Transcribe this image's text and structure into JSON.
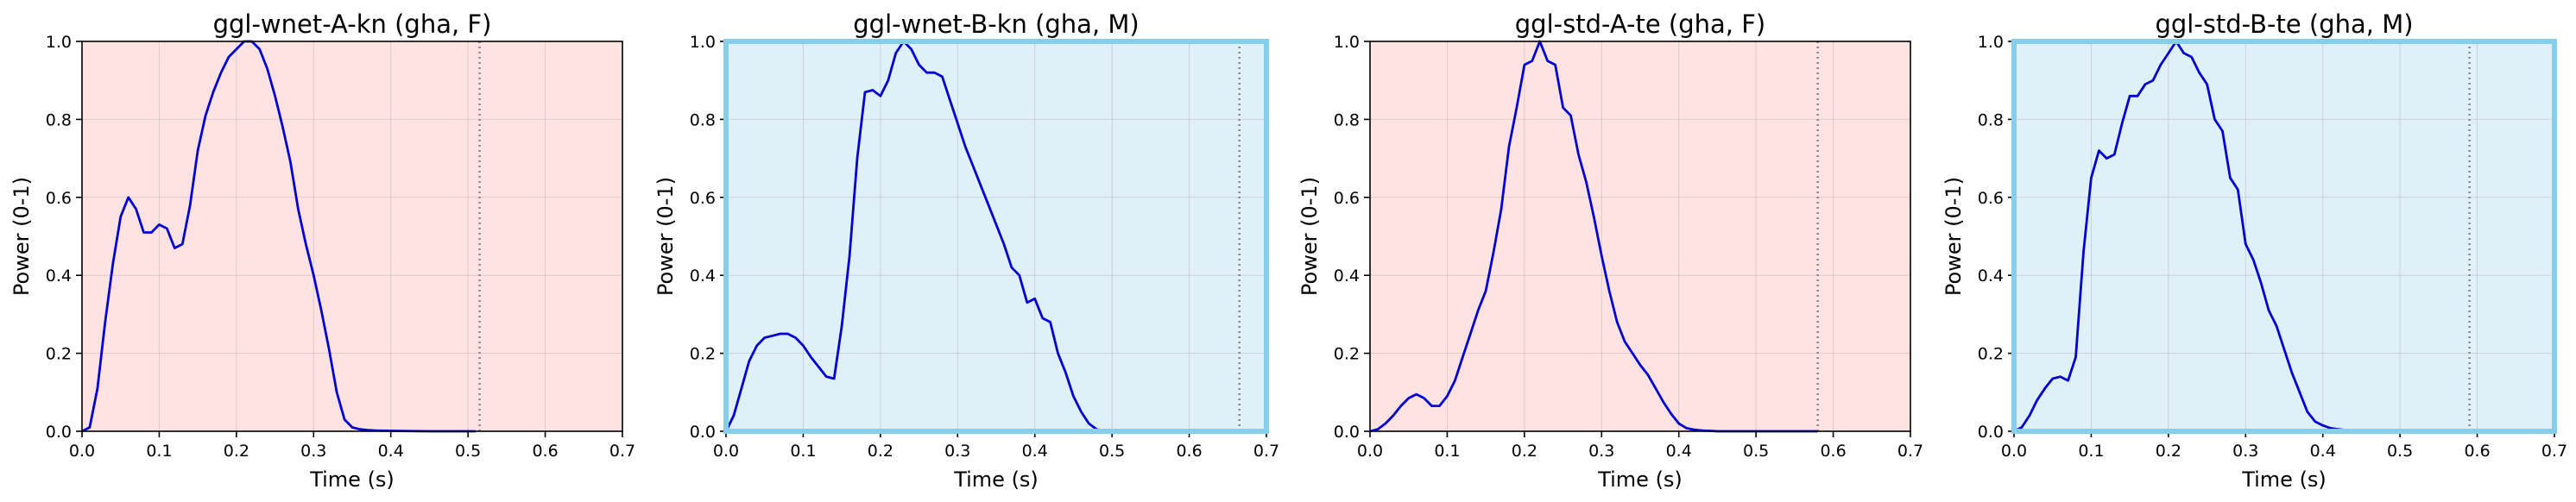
{
  "chart_data": [
    {
      "type": "line",
      "title": "ggl-wnet-A-kn (gha, F)",
      "xlabel": "Time (s)",
      "ylabel": "Power (0-1)",
      "xlim": [
        0,
        0.7
      ],
      "ylim": [
        0,
        1
      ],
      "xticks": [
        "0.0",
        "0.1",
        "0.2",
        "0.3",
        "0.4",
        "0.5",
        "0.6",
        "0.7"
      ],
      "yticks": [
        "0.0",
        "0.2",
        "0.4",
        "0.6",
        "0.8",
        "1.0"
      ],
      "grid": true,
      "background": "#ffe3e3",
      "border_color": "",
      "line_color": "#0000d4",
      "vline_x": 0.515,
      "vline_color": "#8a8a8a",
      "x": [
        0,
        0.01,
        0.02,
        0.03,
        0.04,
        0.05,
        0.06,
        0.07,
        0.08,
        0.09,
        0.1,
        0.11,
        0.12,
        0.13,
        0.14,
        0.15,
        0.16,
        0.17,
        0.18,
        0.19,
        0.2,
        0.21,
        0.22,
        0.23,
        0.24,
        0.25,
        0.26,
        0.27,
        0.28,
        0.29,
        0.3,
        0.31,
        0.32,
        0.33,
        0.34,
        0.35,
        0.36,
        0.37,
        0.38,
        0.4,
        0.45,
        0.5,
        0.51
      ],
      "y": [
        0,
        0.01,
        0.11,
        0.28,
        0.43,
        0.55,
        0.6,
        0.57,
        0.51,
        0.51,
        0.53,
        0.52,
        0.47,
        0.48,
        0.58,
        0.72,
        0.81,
        0.87,
        0.92,
        0.96,
        0.98,
        1.0,
        1.0,
        0.98,
        0.93,
        0.86,
        0.78,
        0.69,
        0.57,
        0.48,
        0.4,
        0.31,
        0.21,
        0.1,
        0.03,
        0.01,
        0.005,
        0.003,
        0.002,
        0.001,
        0,
        0,
        0
      ]
    },
    {
      "type": "line",
      "title": "ggl-wnet-B-kn (gha, M)",
      "xlabel": "Time (s)",
      "ylabel": "Power (0-1)",
      "xlim": [
        0,
        0.7
      ],
      "ylim": [
        0,
        1
      ],
      "xticks": [
        "0.0",
        "0.1",
        "0.2",
        "0.3",
        "0.4",
        "0.5",
        "0.6",
        "0.7"
      ],
      "yticks": [
        "0.0",
        "0.2",
        "0.4",
        "0.6",
        "0.8",
        "1.0"
      ],
      "grid": true,
      "background": "#dff0f8",
      "border_color": "#87ceeb",
      "line_color": "#0000d4",
      "vline_x": 0.665,
      "vline_color": "#8a8a8a",
      "x": [
        0,
        0.01,
        0.02,
        0.03,
        0.04,
        0.05,
        0.06,
        0.07,
        0.08,
        0.09,
        0.1,
        0.11,
        0.12,
        0.13,
        0.14,
        0.15,
        0.16,
        0.17,
        0.18,
        0.19,
        0.2,
        0.21,
        0.22,
        0.23,
        0.24,
        0.25,
        0.26,
        0.27,
        0.28,
        0.29,
        0.3,
        0.31,
        0.32,
        0.33,
        0.34,
        0.35,
        0.36,
        0.37,
        0.38,
        0.39,
        0.4,
        0.41,
        0.42,
        0.43,
        0.44,
        0.45,
        0.46,
        0.47,
        0.48,
        0.49,
        0.5
      ],
      "y": [
        0,
        0.04,
        0.11,
        0.18,
        0.22,
        0.24,
        0.245,
        0.25,
        0.25,
        0.24,
        0.22,
        0.19,
        0.165,
        0.14,
        0.135,
        0.27,
        0.45,
        0.7,
        0.87,
        0.875,
        0.86,
        0.9,
        0.97,
        1.0,
        0.98,
        0.94,
        0.92,
        0.92,
        0.91,
        0.85,
        0.79,
        0.73,
        0.68,
        0.63,
        0.58,
        0.53,
        0.48,
        0.42,
        0.4,
        0.33,
        0.34,
        0.29,
        0.28,
        0.2,
        0.15,
        0.09,
        0.05,
        0.02,
        0.005,
        0,
        0
      ]
    },
    {
      "type": "line",
      "title": "ggl-std-A-te (gha, F)",
      "xlabel": "Time (s)",
      "ylabel": "Power (0-1)",
      "xlim": [
        0,
        0.7
      ],
      "ylim": [
        0,
        1
      ],
      "xticks": [
        "0.0",
        "0.1",
        "0.2",
        "0.3",
        "0.4",
        "0.5",
        "0.6",
        "0.7"
      ],
      "yticks": [
        "0.0",
        "0.2",
        "0.4",
        "0.6",
        "0.8",
        "1.0"
      ],
      "grid": true,
      "background": "#ffe3e3",
      "border_color": "",
      "line_color": "#0000d4",
      "vline_x": 0.58,
      "vline_color": "#8a8a8a",
      "x": [
        0,
        0.01,
        0.02,
        0.03,
        0.04,
        0.05,
        0.06,
        0.07,
        0.08,
        0.09,
        0.1,
        0.11,
        0.12,
        0.13,
        0.14,
        0.15,
        0.16,
        0.17,
        0.18,
        0.19,
        0.2,
        0.21,
        0.22,
        0.23,
        0.24,
        0.25,
        0.26,
        0.27,
        0.28,
        0.29,
        0.3,
        0.31,
        0.32,
        0.33,
        0.34,
        0.35,
        0.36,
        0.37,
        0.38,
        0.39,
        0.4,
        0.41,
        0.42,
        0.43,
        0.44,
        0.45,
        0.5,
        0.55,
        0.58
      ],
      "y": [
        0,
        0.005,
        0.02,
        0.04,
        0.065,
        0.085,
        0.095,
        0.085,
        0.065,
        0.065,
        0.09,
        0.13,
        0.19,
        0.25,
        0.31,
        0.36,
        0.46,
        0.57,
        0.73,
        0.83,
        0.94,
        0.95,
        1.0,
        0.95,
        0.94,
        0.83,
        0.81,
        0.71,
        0.64,
        0.55,
        0.45,
        0.36,
        0.28,
        0.23,
        0.2,
        0.17,
        0.145,
        0.11,
        0.075,
        0.045,
        0.02,
        0.008,
        0.004,
        0.002,
        0.001,
        0,
        0,
        0,
        0
      ]
    },
    {
      "type": "line",
      "title": "ggl-std-B-te (gha, M)",
      "xlabel": "Time (s)",
      "ylabel": "Power (0-1)",
      "xlim": [
        0,
        0.7
      ],
      "ylim": [
        0,
        1
      ],
      "xticks": [
        "0.0",
        "0.1",
        "0.2",
        "0.3",
        "0.4",
        "0.5",
        "0.6",
        "0.7"
      ],
      "yticks": [
        "0.0",
        "0.2",
        "0.4",
        "0.6",
        "0.8",
        "1.0"
      ],
      "grid": true,
      "background": "#dff0f8",
      "border_color": "#87ceeb",
      "line_color": "#0000d4",
      "vline_x": 0.59,
      "vline_color": "#8a8a8a",
      "x": [
        0,
        0.01,
        0.02,
        0.03,
        0.04,
        0.05,
        0.06,
        0.07,
        0.08,
        0.09,
        0.1,
        0.11,
        0.12,
        0.13,
        0.14,
        0.15,
        0.16,
        0.17,
        0.18,
        0.19,
        0.2,
        0.21,
        0.22,
        0.23,
        0.24,
        0.25,
        0.26,
        0.27,
        0.28,
        0.29,
        0.3,
        0.31,
        0.32,
        0.33,
        0.34,
        0.35,
        0.36,
        0.37,
        0.38,
        0.39,
        0.4,
        0.41,
        0.42,
        0.43,
        0.44,
        0.45,
        0.5,
        0.55,
        0.59
      ],
      "y": [
        0,
        0.01,
        0.04,
        0.08,
        0.11,
        0.135,
        0.14,
        0.13,
        0.19,
        0.46,
        0.65,
        0.72,
        0.7,
        0.71,
        0.79,
        0.86,
        0.86,
        0.89,
        0.9,
        0.94,
        0.97,
        1.0,
        0.97,
        0.96,
        0.92,
        0.89,
        0.8,
        0.77,
        0.65,
        0.62,
        0.48,
        0.44,
        0.38,
        0.31,
        0.27,
        0.21,
        0.15,
        0.1,
        0.05,
        0.025,
        0.015,
        0.008,
        0.005,
        0.003,
        0.002,
        0.001,
        0,
        0,
        0
      ]
    }
  ]
}
